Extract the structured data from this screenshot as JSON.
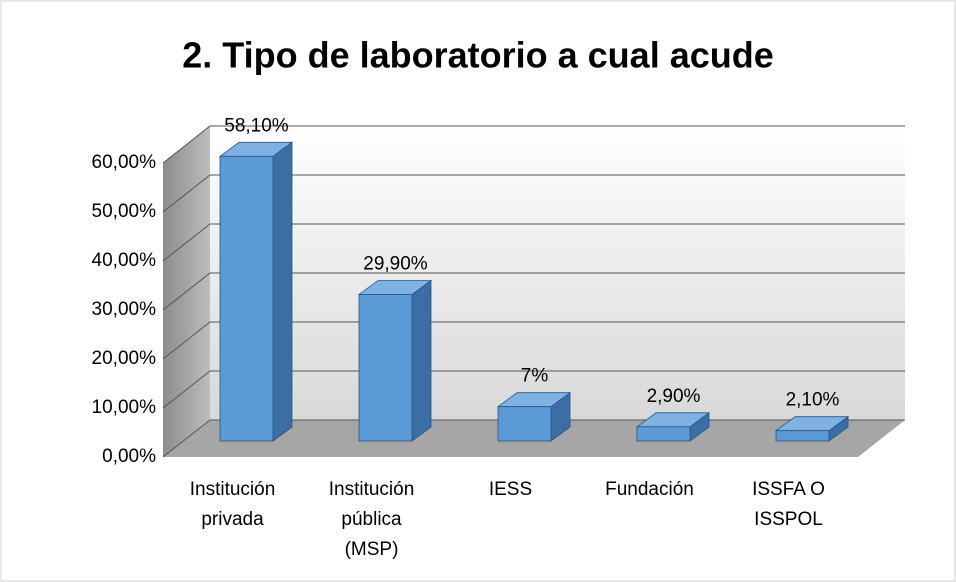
{
  "chart_data": {
    "type": "bar3d",
    "title": "2. Tipo de laboratorio a cual acude",
    "categories": [
      [
        "Institución",
        "privada"
      ],
      [
        "Institución",
        "pública",
        "(MSP)"
      ],
      [
        "IESS"
      ],
      [
        "Fundación"
      ],
      [
        "ISSFA O",
        "ISSPOL"
      ]
    ],
    "values": [
      58.1,
      29.9,
      7,
      2.9,
      2.1
    ],
    "value_labels": [
      "58,10%",
      "29,90%",
      "7%",
      "2,90%",
      "2,10%"
    ],
    "color": "#5b9bd5",
    "ylim": [
      0,
      60
    ],
    "yticks": [
      {
        "value": 0,
        "label": "0,00%"
      },
      {
        "value": 10,
        "label": "10,00%"
      },
      {
        "value": 20,
        "label": "20,00%"
      },
      {
        "value": 30,
        "label": "30,00%"
      },
      {
        "value": 40,
        "label": "40,00%"
      },
      {
        "value": 50,
        "label": "50,00%"
      },
      {
        "value": 60,
        "label": "60,00%"
      }
    ],
    "grid": true
  }
}
